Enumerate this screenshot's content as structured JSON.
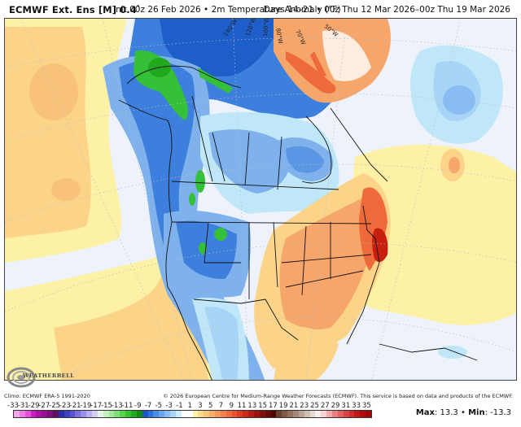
{
  "header": {
    "model": "ECMWF Ext. Ens [M] 0.4",
    "degree_mark": "°",
    "init": "Init 00z 26 Feb 2026",
    "separator": "•",
    "field": "2m Temperature Anomaly (°F)",
    "period_days": "Days 14–21",
    "valid_range": "00z Thu 12 Mar 2026–00z Thu 19 Mar 2026"
  },
  "map": {
    "region": "North America",
    "longitude_labels": [
      "140°W",
      "120°W",
      "100°W",
      "80°W",
      "70°W",
      "50°W"
    ],
    "features": {
      "cold_anomaly": [
        "Alaska",
        "Western Canada",
        "Western US",
        "Mexico interior",
        "Hudson Bay"
      ],
      "warm_anomaly": [
        "Eastern US",
        "Mid-Atlantic coast (max)",
        "Greenland",
        "NE Pacific",
        "Gulf of Mexico"
      ]
    },
    "colors": {
      "ocean_neutral": "#eef3fb",
      "warm_light": "#fdf1a6",
      "warm_mid": "#fbd48a",
      "warm_orange": "#f6a66a",
      "warm_strong": "#ee6a3a",
      "warm_max": "#c8200f",
      "cold_light": "#bfe7f7",
      "cold_mid": "#7fb2ec",
      "cold_strong": "#3d7fdc",
      "cold_deeper": "#1e5ec8",
      "cold_green": "#35c03a"
    }
  },
  "branding": {
    "logo_text": "WEATHERBELL"
  },
  "footer": {
    "climo": "Climo: ECMWF ERA-5 1991-2020",
    "copyright": "© 2026 European Centre for Medium-Range Weather Forecasts (ECMWF). This service is based on data and products of the ECMWF.",
    "max_label": "Max",
    "max_value": ": 13.3",
    "separator": " • ",
    "min_label": "Min",
    "min_value": ": -13.3"
  },
  "colorbar": {
    "ticks": [
      "-33",
      "-31",
      "-29",
      "-27",
      "-25",
      "-23",
      "-21",
      "-19",
      "-17",
      "-15",
      "-13",
      "-11",
      "-9",
      "-7",
      "-5",
      "-3",
      "-1",
      "1",
      "3",
      "5",
      "7",
      "9",
      "11",
      "13",
      "15",
      "17",
      "19",
      "21",
      "23",
      "25",
      "27",
      "29",
      "31",
      "33",
      "35"
    ],
    "colors": [
      "#f7a8f0",
      "#f07be6",
      "#e450d8",
      "#cc1ec4",
      "#b012a8",
      "#951290",
      "#7a1078",
      "#5e0e60",
      "#2c2ca8",
      "#3e3ec0",
      "#5a52d0",
      "#7a72dc",
      "#9a90e6",
      "#b8b0ee",
      "#d4d0f4",
      "#e6f6e6",
      "#c4f0bc",
      "#a2e89a",
      "#7cde74",
      "#56d44e",
      "#38c232",
      "#22a81c",
      "#108c0c",
      "#1e54c8",
      "#2e70dc",
      "#4a8ce6",
      "#68a6ee",
      "#88bcf2",
      "#a8d4f6",
      "#c8ecfa",
      "#ffffff",
      "#ffffff",
      "#fdf1a6",
      "#fcd98c",
      "#fbc47a",
      "#f9ae6a",
      "#f7985a",
      "#f4824c",
      "#f06a3e",
      "#ea5230",
      "#e03a22",
      "#cc2a18",
      "#b41e12",
      "#9c160e",
      "#82100a",
      "#680a06",
      "#520604",
      "#6a4030",
      "#805848",
      "#947060",
      "#a8887a",
      "#bca296",
      "#d0beb4",
      "#e4dad4",
      "#f6eeec",
      "#f8d4d4",
      "#f0aaaa",
      "#e88282",
      "#e06060",
      "#d84444",
      "#d02c2c",
      "#c41818",
      "#b00c0c",
      "#a00606"
    ]
  }
}
